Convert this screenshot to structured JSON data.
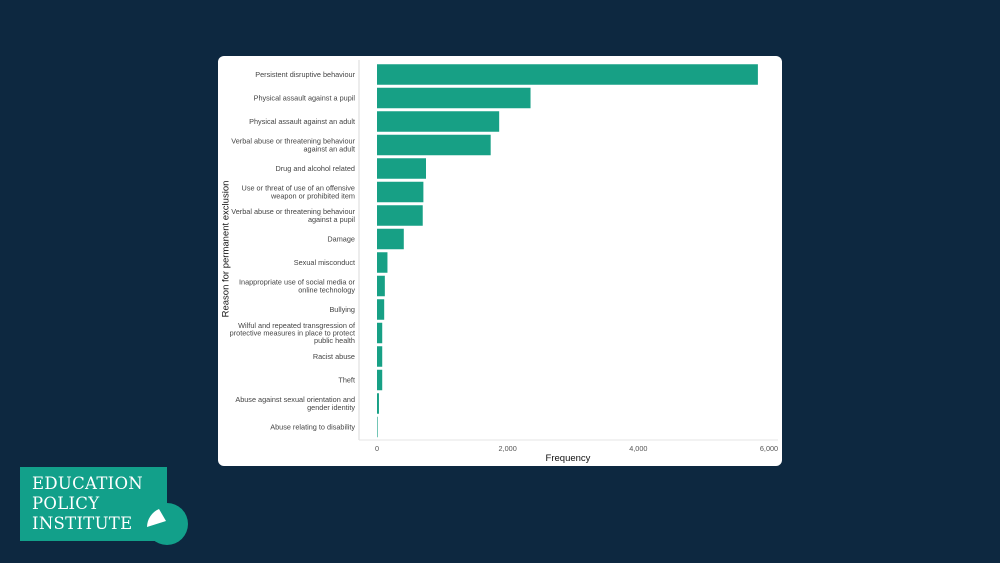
{
  "chart_data": {
    "type": "bar",
    "orientation": "horizontal",
    "categories": [
      "Persistent disruptive behaviour",
      "Physical assault against a pupil",
      "Physical assault against an adult",
      "Verbal abuse or threatening behaviour\nagainst an adult",
      "Drug and alcohol related",
      "Use or threat of use of an offensive\nweapon or prohibited item",
      "Verbal abuse or threatening behaviour\nagainst a pupil",
      "Damage",
      "Sexual misconduct",
      "Inappropriate use of social media or\nonline technology",
      "Bullying",
      "Wilful and repeated transgression of\nprotective measures in place to protect\npublic health",
      "Racist abuse",
      "Theft",
      "Abuse against sexual orientation and\ngender identity",
      "Abuse relating to disability"
    ],
    "values": [
      5830,
      2350,
      1870,
      1740,
      750,
      710,
      700,
      410,
      160,
      120,
      110,
      80,
      80,
      80,
      30,
      5
    ],
    "xlabel": "Frequency",
    "ylabel": "Reason for permanent exclusion",
    "xlim": [
      0,
      6000
    ],
    "xticks": [
      {
        "value": 0,
        "label": "0"
      },
      {
        "value": 2000,
        "label": "2,000"
      },
      {
        "value": 4000,
        "label": "4,000"
      },
      {
        "value": 6000,
        "label": "6,000"
      }
    ],
    "grid": false,
    "bar_color": "#17a085"
  },
  "logo": {
    "line1": "Education",
    "line2": "Policy",
    "line3": "Institute",
    "colors": {
      "background": "#12a08a",
      "text": "#ffffff"
    }
  },
  "colors": {
    "page_background": "#0d2840",
    "card_background": "#ffffff"
  }
}
